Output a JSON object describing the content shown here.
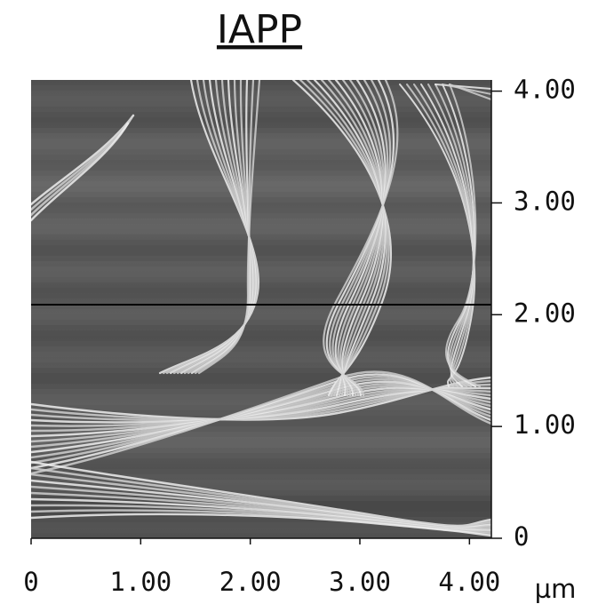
{
  "title": "IAPP",
  "image": {
    "xlim": [
      0,
      4.2
    ],
    "ylim": [
      0,
      4.1
    ],
    "xticks": [
      0,
      {
        "value": 1,
        "label": "1.00"
      },
      {
        "value": 2,
        "label": "2.00"
      },
      {
        "value": 3,
        "label": "3.00"
      },
      {
        "value": 4,
        "label": "4.00"
      }
    ],
    "yticks": [
      0,
      {
        "value": 1,
        "label": "1.00"
      },
      {
        "value": 2,
        "label": "2.00"
      },
      {
        "value": 3,
        "label": "3.00"
      },
      {
        "value": 4,
        "label": "4.00"
      }
    ],
    "unit": "µm"
  }
}
